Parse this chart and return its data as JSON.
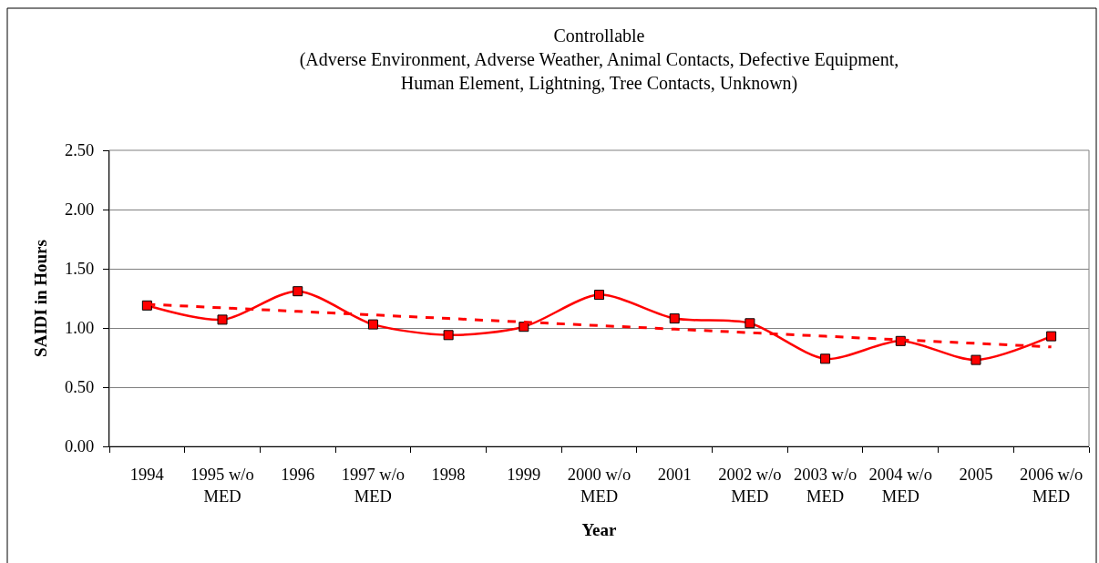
{
  "chart_data": {
    "type": "line",
    "title": "Controllable",
    "subtitle": "(Adverse Environment, Adverse Weather, Animal Contacts, Defective Equipment, Human Element, Lightning, Tree Contacts, Unknown)",
    "xlabel": "Year",
    "ylabel": "SAIDI in Hours",
    "categories": [
      "1994",
      "1995 w/o MED",
      "1996",
      "1997 w/o MED",
      "1998",
      "1999",
      "2000 w/o MED",
      "2001",
      "2002 w/o MED",
      "2003 w/o MED",
      "2004 w/o MED",
      "2005",
      "2006 w/o MED"
    ],
    "series": [
      {
        "color": "#ff0000",
        "values": [
          1.19,
          1.07,
          1.31,
          1.03,
          0.94,
          1.01,
          1.28,
          1.08,
          1.04,
          0.74,
          0.89,
          0.73,
          0.93
        ]
      },
      {
        "type": "line",
        "color": "#ff0000",
        "values": [
          1.2,
          1.17,
          1.14,
          1.11,
          1.08,
          1.05,
          1.02,
          0.99,
          0.96,
          0.93,
          0.9,
          0.87,
          0.84
        ],
        "line_style": "dashed",
        "marker": "none"
      }
    ],
    "ylim": [
      0,
      2.5
    ],
    "yticks": [
      {
        "value": 0,
        "label": "0.00"
      },
      {
        "value": 0.5,
        "label": "0.50"
      },
      {
        "value": 1,
        "label": "1.00"
      },
      {
        "value": 1.5,
        "label": "1.50"
      },
      {
        "value": 2,
        "label": "2.00"
      },
      {
        "value": 2.5,
        "label": "2.50"
      }
    ],
    "grid": "y",
    "marker": "square",
    "line_style": "solid"
  }
}
